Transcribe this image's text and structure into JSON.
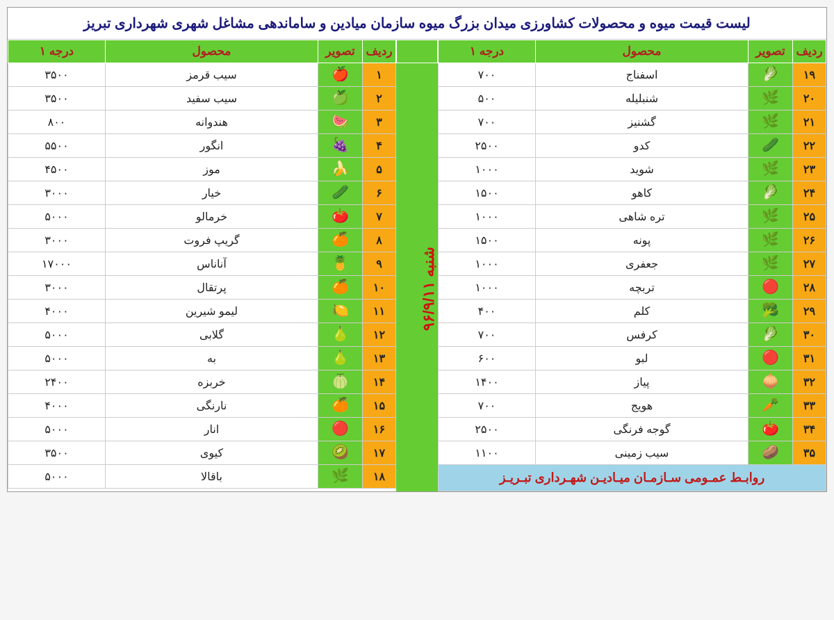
{
  "title": "لیست قیمت میوه و محصولات کشاورزی میدان بزرگ میوه سازمان میادین و ساماندهی مشاغل شهری شهرداری تبریز",
  "date_label": "شنبه ۹۶/۹/۱۱",
  "footer": "روابـط عمـومی سـازمـان میـادیـن شهـرداری تبـریـز",
  "headers": {
    "radif": "ردیف",
    "image": "تصویر",
    "product": "محصول",
    "price": "درجه ۱"
  },
  "colors": {
    "header_bg": "#66cc33",
    "header_text": "#b02020",
    "radif_bg": "#f7a814",
    "image_bg": "#66cc33",
    "date_bg": "#66cc33",
    "date_text": "#d01010",
    "footer_bg": "#9fd4e8",
    "footer_text": "#c01818",
    "title_text": "#1a1a7a",
    "border": "#cccccc"
  },
  "right_table": [
    {
      "n": "۱",
      "name": "سیب قرمز",
      "price": "۳۵۰۰",
      "icon": "🍎"
    },
    {
      "n": "۲",
      "name": "سیب سفید",
      "price": "۳۵۰۰",
      "icon": "🍏"
    },
    {
      "n": "۳",
      "name": "هندوانه",
      "price": "۸۰۰",
      "icon": "🍉"
    },
    {
      "n": "۴",
      "name": "انگور",
      "price": "۵۵۰۰",
      "icon": "🍇"
    },
    {
      "n": "۵",
      "name": "موز",
      "price": "۴۵۰۰",
      "icon": "🍌"
    },
    {
      "n": "۶",
      "name": "خیار",
      "price": "۳۰۰۰",
      "icon": "🥒"
    },
    {
      "n": "۷",
      "name": "خرمالو",
      "price": "۵۰۰۰",
      "icon": "🍅"
    },
    {
      "n": "۸",
      "name": "گریپ فروت",
      "price": "۳۰۰۰",
      "icon": "🍊"
    },
    {
      "n": "۹",
      "name": "آناناس",
      "price": "۱۷۰۰۰",
      "icon": "🍍"
    },
    {
      "n": "۱۰",
      "name": "پرتقال",
      "price": "۳۰۰۰",
      "icon": "🍊"
    },
    {
      "n": "۱۱",
      "name": "لیمو شیرین",
      "price": "۴۰۰۰",
      "icon": "🍋"
    },
    {
      "n": "۱۲",
      "name": "گلابی",
      "price": "۵۰۰۰",
      "icon": "🍐"
    },
    {
      "n": "۱۳",
      "name": "به",
      "price": "۵۰۰۰",
      "icon": "🍐"
    },
    {
      "n": "۱۴",
      "name": "خربزه",
      "price": "۲۴۰۰",
      "icon": "🍈"
    },
    {
      "n": "۱۵",
      "name": "نارنگی",
      "price": "۴۰۰۰",
      "icon": "🍊"
    },
    {
      "n": "۱۶",
      "name": "انار",
      "price": "۵۰۰۰",
      "icon": "🔴"
    },
    {
      "n": "۱۷",
      "name": "کیوی",
      "price": "۳۵۰۰",
      "icon": "🥝"
    },
    {
      "n": "۱۸",
      "name": "باقالا",
      "price": "۵۰۰۰",
      "icon": "🌿"
    }
  ],
  "left_table": [
    {
      "n": "۱۹",
      "name": "اسفناج",
      "price": "۷۰۰",
      "icon": "🥬"
    },
    {
      "n": "۲۰",
      "name": "شنبلیله",
      "price": "۵۰۰",
      "icon": "🌿"
    },
    {
      "n": "۲۱",
      "name": "گشنیز",
      "price": "۷۰۰",
      "icon": "🌿"
    },
    {
      "n": "۲۲",
      "name": "کدو",
      "price": "۲۵۰۰",
      "icon": "🥒"
    },
    {
      "n": "۲۳",
      "name": "شوید",
      "price": "۱۰۰۰",
      "icon": "🌿"
    },
    {
      "n": "۲۴",
      "name": "کاهو",
      "price": "۱۵۰۰",
      "icon": "🥬"
    },
    {
      "n": "۲۵",
      "name": "تره شاهی",
      "price": "۱۰۰۰",
      "icon": "🌿"
    },
    {
      "n": "۲۶",
      "name": "پونه",
      "price": "۱۵۰۰",
      "icon": "🌿"
    },
    {
      "n": "۲۷",
      "name": "جعفری",
      "price": "۱۰۰۰",
      "icon": "🌿"
    },
    {
      "n": "۲۸",
      "name": "تربچه",
      "price": "۱۰۰۰",
      "icon": "🔴"
    },
    {
      "n": "۲۹",
      "name": "کلم",
      "price": "۴۰۰",
      "icon": "🥦"
    },
    {
      "n": "۳۰",
      "name": "کرفس",
      "price": "۷۰۰",
      "icon": "🥬"
    },
    {
      "n": "۳۱",
      "name": "لبو",
      "price": "۶۰۰",
      "icon": "🔴"
    },
    {
      "n": "۳۲",
      "name": "پیاز",
      "price": "۱۴۰۰",
      "icon": "🧅"
    },
    {
      "n": "۳۳",
      "name": "هویج",
      "price": "۷۰۰",
      "icon": "🥕"
    },
    {
      "n": "۳۴",
      "name": "گوجه فرنگی",
      "price": "۲۵۰۰",
      "icon": "🍅"
    },
    {
      "n": "۳۵",
      "name": "سیب زمینی",
      "price": "۱۱۰۰",
      "icon": "🥔"
    }
  ]
}
